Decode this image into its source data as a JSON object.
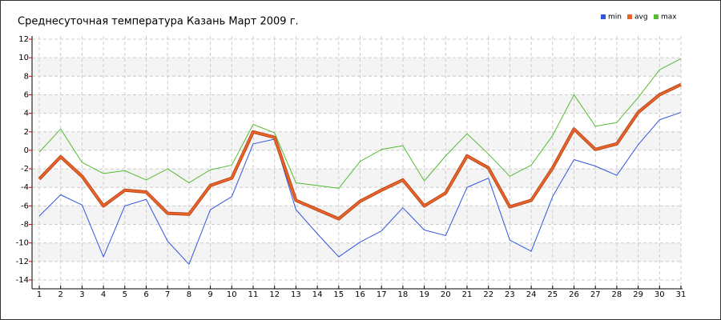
{
  "chart_data": {
    "type": "line",
    "title": "Среднесуточная температура Казань  Март 2009 г.",
    "x": [
      1,
      2,
      3,
      4,
      5,
      6,
      7,
      8,
      9,
      10,
      11,
      12,
      13,
      14,
      15,
      16,
      17,
      18,
      19,
      20,
      21,
      22,
      23,
      24,
      25,
      26,
      27,
      28,
      29,
      30,
      31
    ],
    "series": [
      {
        "name": "min",
        "color": "#3355dd",
        "values": [
          -7.1,
          -4.8,
          -5.9,
          -11.5,
          -6.0,
          -5.3,
          -9.8,
          -12.3,
          -6.4,
          -5.0,
          0.7,
          1.2,
          -6.4,
          -9.0,
          -11.5,
          -9.9,
          -8.7,
          -6.2,
          -8.6,
          -9.2,
          -4.0,
          -3.0,
          -9.7,
          -10.9,
          -5.0,
          -1.0,
          -1.7,
          -2.7,
          0.6,
          3.3,
          4.1
        ]
      },
      {
        "name": "avg",
        "color": "#e8622a",
        "values": [
          -3.1,
          -0.7,
          -2.8,
          -6.0,
          -4.3,
          -4.5,
          -6.8,
          -6.9,
          -3.8,
          -3.0,
          2.0,
          1.4,
          -5.4,
          -6.4,
          -7.4,
          -5.5,
          -4.3,
          -3.2,
          -6.0,
          -4.6,
          -0.6,
          -1.9,
          -6.1,
          -5.4,
          -1.9,
          2.3,
          0.1,
          0.7,
          4.1,
          6.0,
          7.1
        ]
      },
      {
        "name": "max",
        "color": "#55bb33",
        "values": [
          -0.2,
          2.3,
          -1.3,
          -2.5,
          -2.2,
          -3.2,
          -2.0,
          -3.5,
          -2.1,
          -1.6,
          2.8,
          1.9,
          -3.5,
          -3.8,
          -4.1,
          -1.2,
          0.1,
          0.5,
          -3.3,
          -0.6,
          1.8,
          -0.4,
          -2.8,
          -1.6,
          1.6,
          6.0,
          2.6,
          3.0,
          5.7,
          8.7,
          9.9
        ]
      }
    ],
    "xlim": [
      1,
      31
    ],
    "xticks": [
      1,
      2,
      3,
      4,
      5,
      6,
      7,
      8,
      9,
      10,
      11,
      12,
      13,
      14,
      15,
      16,
      17,
      18,
      19,
      20,
      21,
      22,
      23,
      24,
      25,
      26,
      27,
      28,
      29,
      30,
      31
    ],
    "ylim": [
      -14,
      12
    ],
    "yticks": [
      -14,
      -12,
      -10,
      -8,
      -6,
      -4,
      -2,
      0,
      2,
      4,
      6,
      8,
      10,
      12
    ],
    "grid": true
  }
}
